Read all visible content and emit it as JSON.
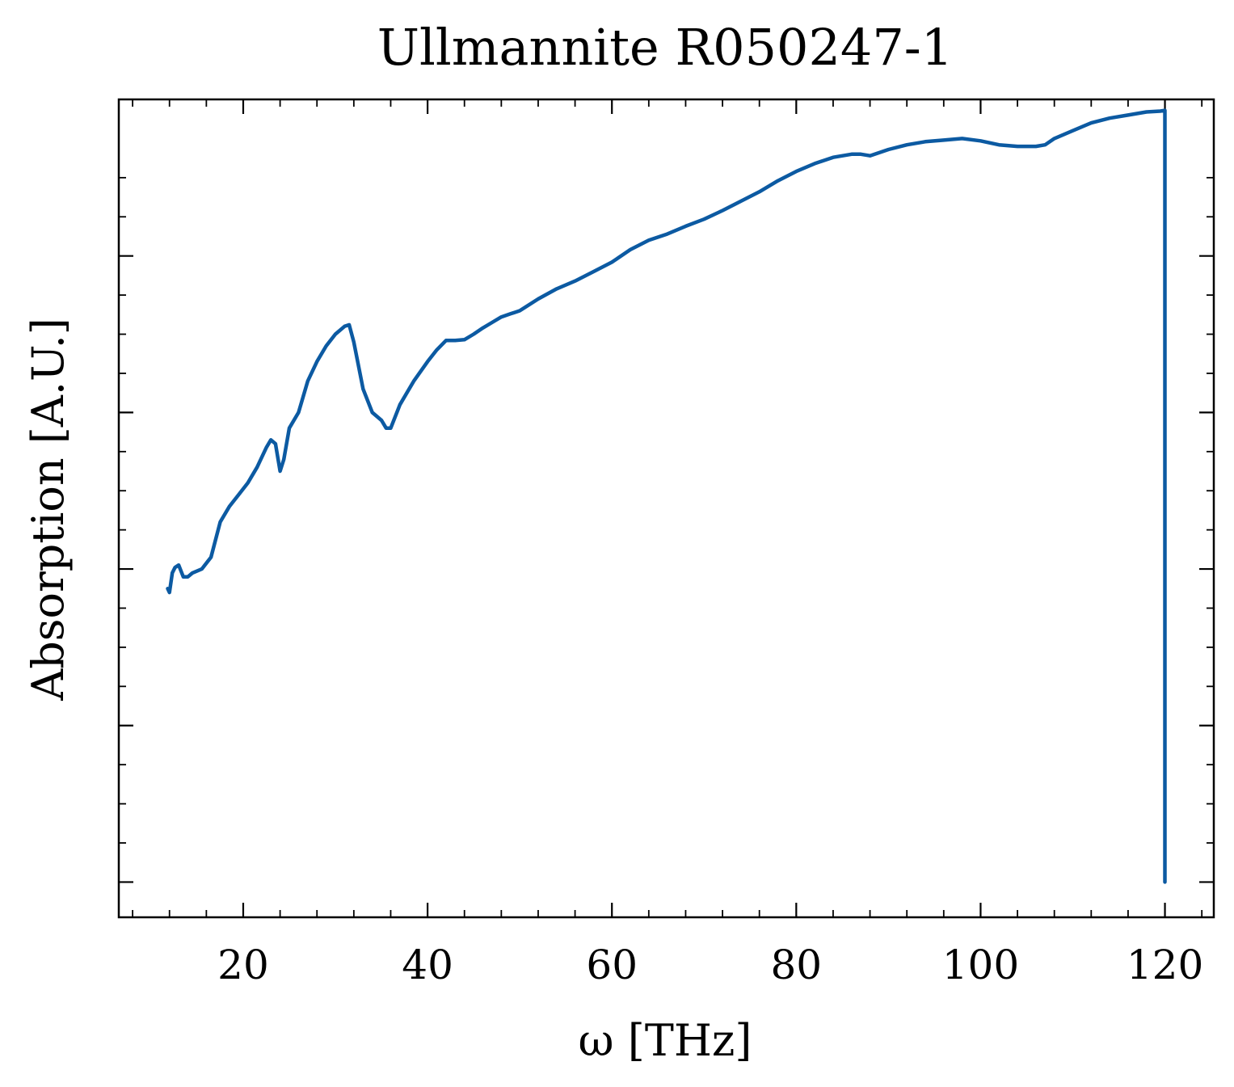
{
  "chart_data": {
    "type": "line",
    "title": "Ullmannite R050247-1",
    "xlabel": "ω [THz]",
    "ylabel": "Absorption [A.U.]",
    "xlim": [
      6.5,
      125.3
    ],
    "ylim": [
      -0.045,
      1.0
    ],
    "xticks": [
      20,
      40,
      60,
      80,
      100,
      120
    ],
    "xtick_labels": [
      "20",
      "40",
      "60",
      "80",
      "100",
      "120"
    ],
    "y_major_ticks": [
      0.0,
      0.2,
      0.4,
      0.6,
      0.8
    ],
    "y_tick_labels_shown": false,
    "grid": false,
    "legend": "none",
    "colors": {
      "line": "#0c5aa2",
      "axes": "#000000",
      "background": "#ffffff"
    },
    "series": [
      {
        "x": [
          11.8,
          12.0,
          12.3,
          12.6,
          13.0,
          13.5,
          14.0,
          14.5,
          15.5,
          16.5,
          17.5,
          18.5,
          19.5,
          20.5,
          21.0,
          21.5,
          22.5,
          23.0,
          23.5,
          24.0,
          24.4,
          25.0,
          26.0,
          27.0,
          28.0,
          29.0,
          30.0,
          31.0,
          31.5,
          32.0,
          33.0,
          34.0,
          35.0,
          35.5,
          36.0,
          37.0,
          38.5,
          40.0,
          41.0,
          42.0,
          43.0,
          44.0,
          45.0,
          46.0,
          47.0,
          48.0,
          49.0,
          50.0,
          52.0,
          54.0,
          56.0,
          58.0,
          60.0,
          62.0,
          64.0,
          66.0,
          68.0,
          70.0,
          72.0,
          74.0,
          76.0,
          78.0,
          80.0,
          82.0,
          84.0,
          86.0,
          87.0,
          88.0,
          90.0,
          92.0,
          94.0,
          96.0,
          98.0,
          100.0,
          102.0,
          104.0,
          106.0,
          107.0,
          108.0,
          110.0,
          112.0,
          114.0,
          116.0,
          118.0,
          119.5,
          120.0,
          120.0
        ],
        "y": [
          0.375,
          0.37,
          0.395,
          0.402,
          0.405,
          0.39,
          0.39,
          0.395,
          0.4,
          0.415,
          0.46,
          0.48,
          0.495,
          0.51,
          0.52,
          0.53,
          0.555,
          0.565,
          0.56,
          0.525,
          0.54,
          0.58,
          0.6,
          0.64,
          0.665,
          0.685,
          0.7,
          0.71,
          0.712,
          0.69,
          0.63,
          0.6,
          0.59,
          0.58,
          0.58,
          0.61,
          0.64,
          0.665,
          0.68,
          0.692,
          0.692,
          0.693,
          0.7,
          0.708,
          0.715,
          0.722,
          0.726,
          0.73,
          0.745,
          0.758,
          0.768,
          0.78,
          0.792,
          0.808,
          0.82,
          0.828,
          0.838,
          0.847,
          0.858,
          0.87,
          0.882,
          0.896,
          0.908,
          0.918,
          0.926,
          0.93,
          0.93,
          0.928,
          0.936,
          0.942,
          0.946,
          0.948,
          0.95,
          0.947,
          0.942,
          0.94,
          0.94,
          0.942,
          0.95,
          0.96,
          0.97,
          0.976,
          0.98,
          0.984,
          0.985,
          0.986,
          0.0
        ]
      }
    ]
  }
}
